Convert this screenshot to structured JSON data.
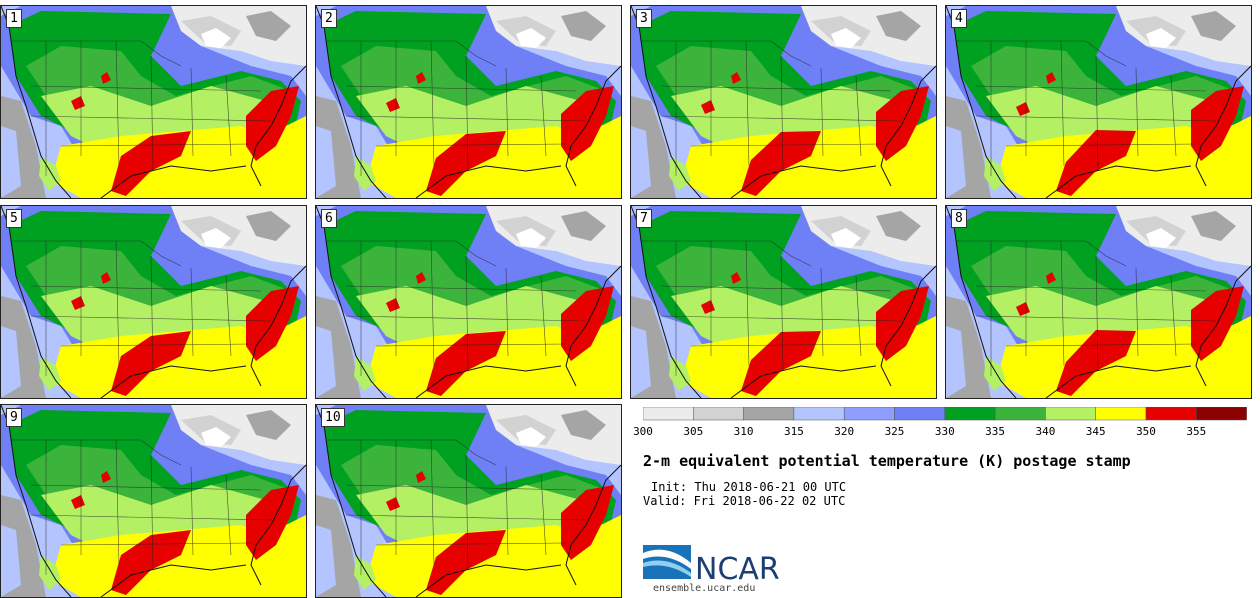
{
  "panels": [
    {
      "label": "1"
    },
    {
      "label": "2"
    },
    {
      "label": "3"
    },
    {
      "label": "4"
    },
    {
      "label": "5"
    },
    {
      "label": "6"
    },
    {
      "label": "7"
    },
    {
      "label": "8"
    },
    {
      "label": "9"
    },
    {
      "label": "10"
    }
  ],
  "colorbar": {
    "ticks": [
      "300",
      "305",
      "310",
      "315",
      "320",
      "325",
      "330",
      "335",
      "340",
      "345",
      "350",
      "355"
    ],
    "colors": [
      "#ececec",
      "#d2d2d2",
      "#a5a5a5",
      "#b3c4ff",
      "#8d9eff",
      "#6f7ff5",
      "#00a020",
      "#3cb43c",
      "#b4f064",
      "#ffff00",
      "#e60000",
      "#8b0000"
    ]
  },
  "title": "2-m equivalent potential temperature (K) postage stamp",
  "init": "Init: Thu 2018-06-21 00 UTC",
  "valid": "Valid: Fri 2018-06-22 02 UTC",
  "logo_text": "NCAR",
  "url": "ensemble.ucar.edu"
}
